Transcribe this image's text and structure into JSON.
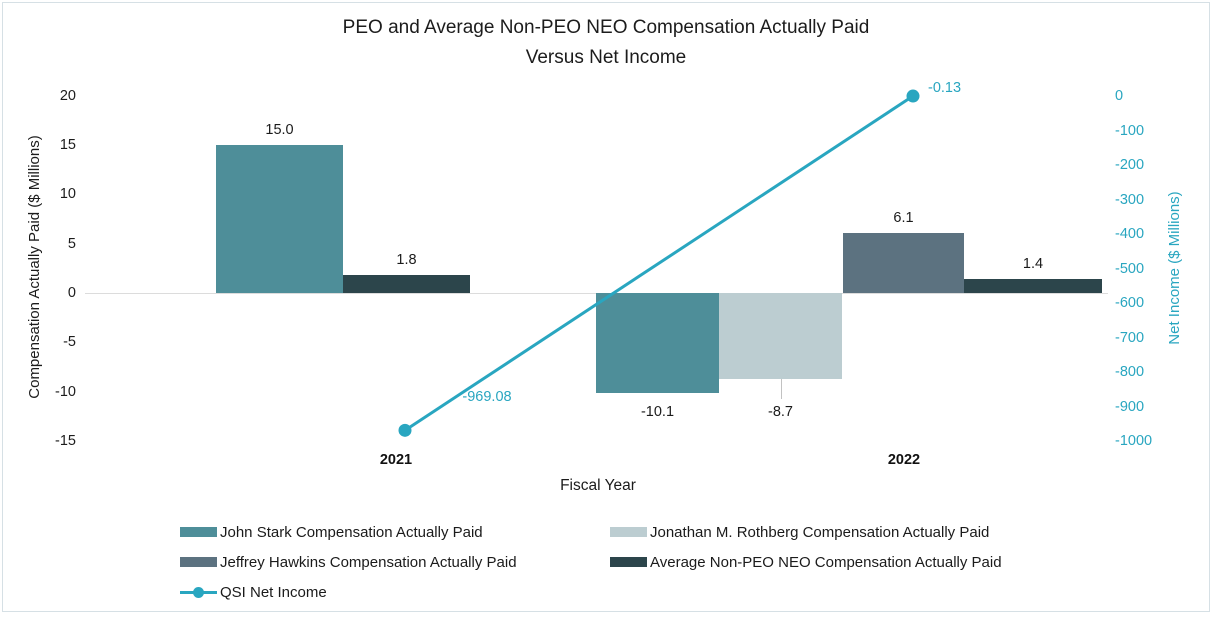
{
  "title": {
    "line1": "PEO and Average Non-PEO NEO Compensation Actually Paid",
    "line2": "Versus Net Income"
  },
  "chart_data": {
    "type": "bar+line",
    "title": "PEO and Average Non-PEO NEO Compensation Actually Paid Versus Net Income",
    "categories": [
      "2021",
      "2022"
    ],
    "xlabel": "Fiscal Year",
    "ylabel_left": "Compensation Actually Paid ($ Millions)",
    "ylabel_right": "Net Income ($ Millions)",
    "ylim_left": [
      -15,
      20
    ],
    "ylim_right": [
      -1000,
      0
    ],
    "left_ticks": [
      "20",
      "15",
      "10",
      "5",
      "0",
      "-5",
      "-10",
      "-15"
    ],
    "left_tick_values": [
      20,
      15,
      10,
      5,
      0,
      -5,
      -10,
      -15
    ],
    "right_ticks": [
      "0",
      "-100",
      "-200",
      "-300",
      "-400",
      "-500",
      "-600",
      "-700",
      "-800",
      "-900",
      "-1000"
    ],
    "right_tick_values": [
      0,
      -100,
      -200,
      -300,
      -400,
      -500,
      -600,
      -700,
      -800,
      -900,
      -1000
    ],
    "grid": false,
    "legend_position": "bottom",
    "series": [
      {
        "name": "John Stark Compensation Actually Paid",
        "type": "bar",
        "axis": "left",
        "color": "#4e8e99",
        "values": [
          15.0,
          -10.1
        ],
        "labels": [
          "15.0",
          "-10.1"
        ]
      },
      {
        "name": "Jonathan M. Rothberg Compensation Actually Paid",
        "type": "bar",
        "axis": "left",
        "color": "#bccdd1",
        "values": [
          null,
          -8.7
        ],
        "labels": [
          null,
          "-8.7"
        ]
      },
      {
        "name": "Jeffrey Hawkins Compensation Actually Paid",
        "type": "bar",
        "axis": "left",
        "color": "#5c7280",
        "values": [
          null,
          6.1
        ],
        "labels": [
          null,
          "6.1"
        ]
      },
      {
        "name": "Average Non-PEO NEO Compensation Actually Paid",
        "type": "bar",
        "axis": "left",
        "color": "#2c454b",
        "values": [
          1.8,
          1.4
        ],
        "labels": [
          "1.8",
          "1.4"
        ]
      },
      {
        "name": "QSI Net Income",
        "type": "line",
        "axis": "right",
        "color": "#29a6c0",
        "values": [
          -969.08,
          -0.13
        ],
        "labels": [
          "-969.08",
          "-0.13"
        ]
      }
    ],
    "colors": {
      "net_income_accent": "#29a6c0",
      "zero_line": "#dcdcdc",
      "text": "#1c1c1c"
    }
  }
}
